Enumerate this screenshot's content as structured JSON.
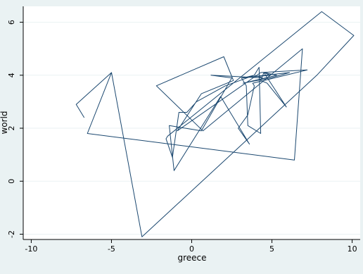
{
  "chart_data": {
    "type": "line",
    "title": "",
    "xlabel": "greece",
    "ylabel": "world",
    "xlim": [
      -10.5,
      10.5
    ],
    "ylim": [
      -2.2,
      6.6
    ],
    "xticks": [
      -10,
      -5,
      0,
      5,
      10
    ],
    "yticks": [
      -2,
      0,
      2,
      4,
      6
    ],
    "grid": "horizontal",
    "legend": "none",
    "colors": {
      "background": "#eaf2f3",
      "plot_bg": "#ffffff",
      "line": "#1a476f",
      "grid": "#eaf2f3"
    },
    "series": [
      {
        "x": [
          -6.7,
          -7.2,
          -5.0,
          -6.5,
          6.4,
          6.9,
          0.7,
          -2.2,
          2.0,
          2.6,
          0.6,
          -0.9,
          4.3,
          7.2,
          3.8,
          3.9,
          3.5,
          2.9,
          3.6,
          1.8,
          -1.1,
          -1.4,
          0.6,
          2.5,
          1.2,
          4.4,
          3.9,
          4.2,
          4.3,
          3.5,
          3.4,
          3.1,
          6.1,
          4.9,
          3.2,
          5.3,
          4.5,
          4.3,
          4.7,
          5.9,
          4.5,
          4.9,
          3.2,
          3.9,
          2.1,
          0.3,
          -0.3,
          -0.8,
          -1.2,
          -1.6,
          -1.5,
          8.1,
          10.1,
          7.8,
          -3.1,
          -5.0
        ],
        "y": [
          2.4,
          2.9,
          4.1,
          1.8,
          0.8,
          5.0,
          1.9,
          3.6,
          4.7,
          3.8,
          3.3,
          1.9,
          4.1,
          4.2,
          3.7,
          3.6,
          2.5,
          2.0,
          1.4,
          3.2,
          0.4,
          2.1,
          1.9,
          3.9,
          4.0,
          3.9,
          4.0,
          4.3,
          1.8,
          2.1,
          3.6,
          3.9,
          4.1,
          3.9,
          3.7,
          4.0,
          4.1,
          3.8,
          3.7,
          2.8,
          4.1,
          4.0,
          3.9,
          4.0,
          3.6,
          3.0,
          2.6,
          2.6,
          0.9,
          1.6,
          1.7,
          6.4,
          5.5,
          4.0,
          -2.1,
          4.1
        ]
      }
    ]
  }
}
